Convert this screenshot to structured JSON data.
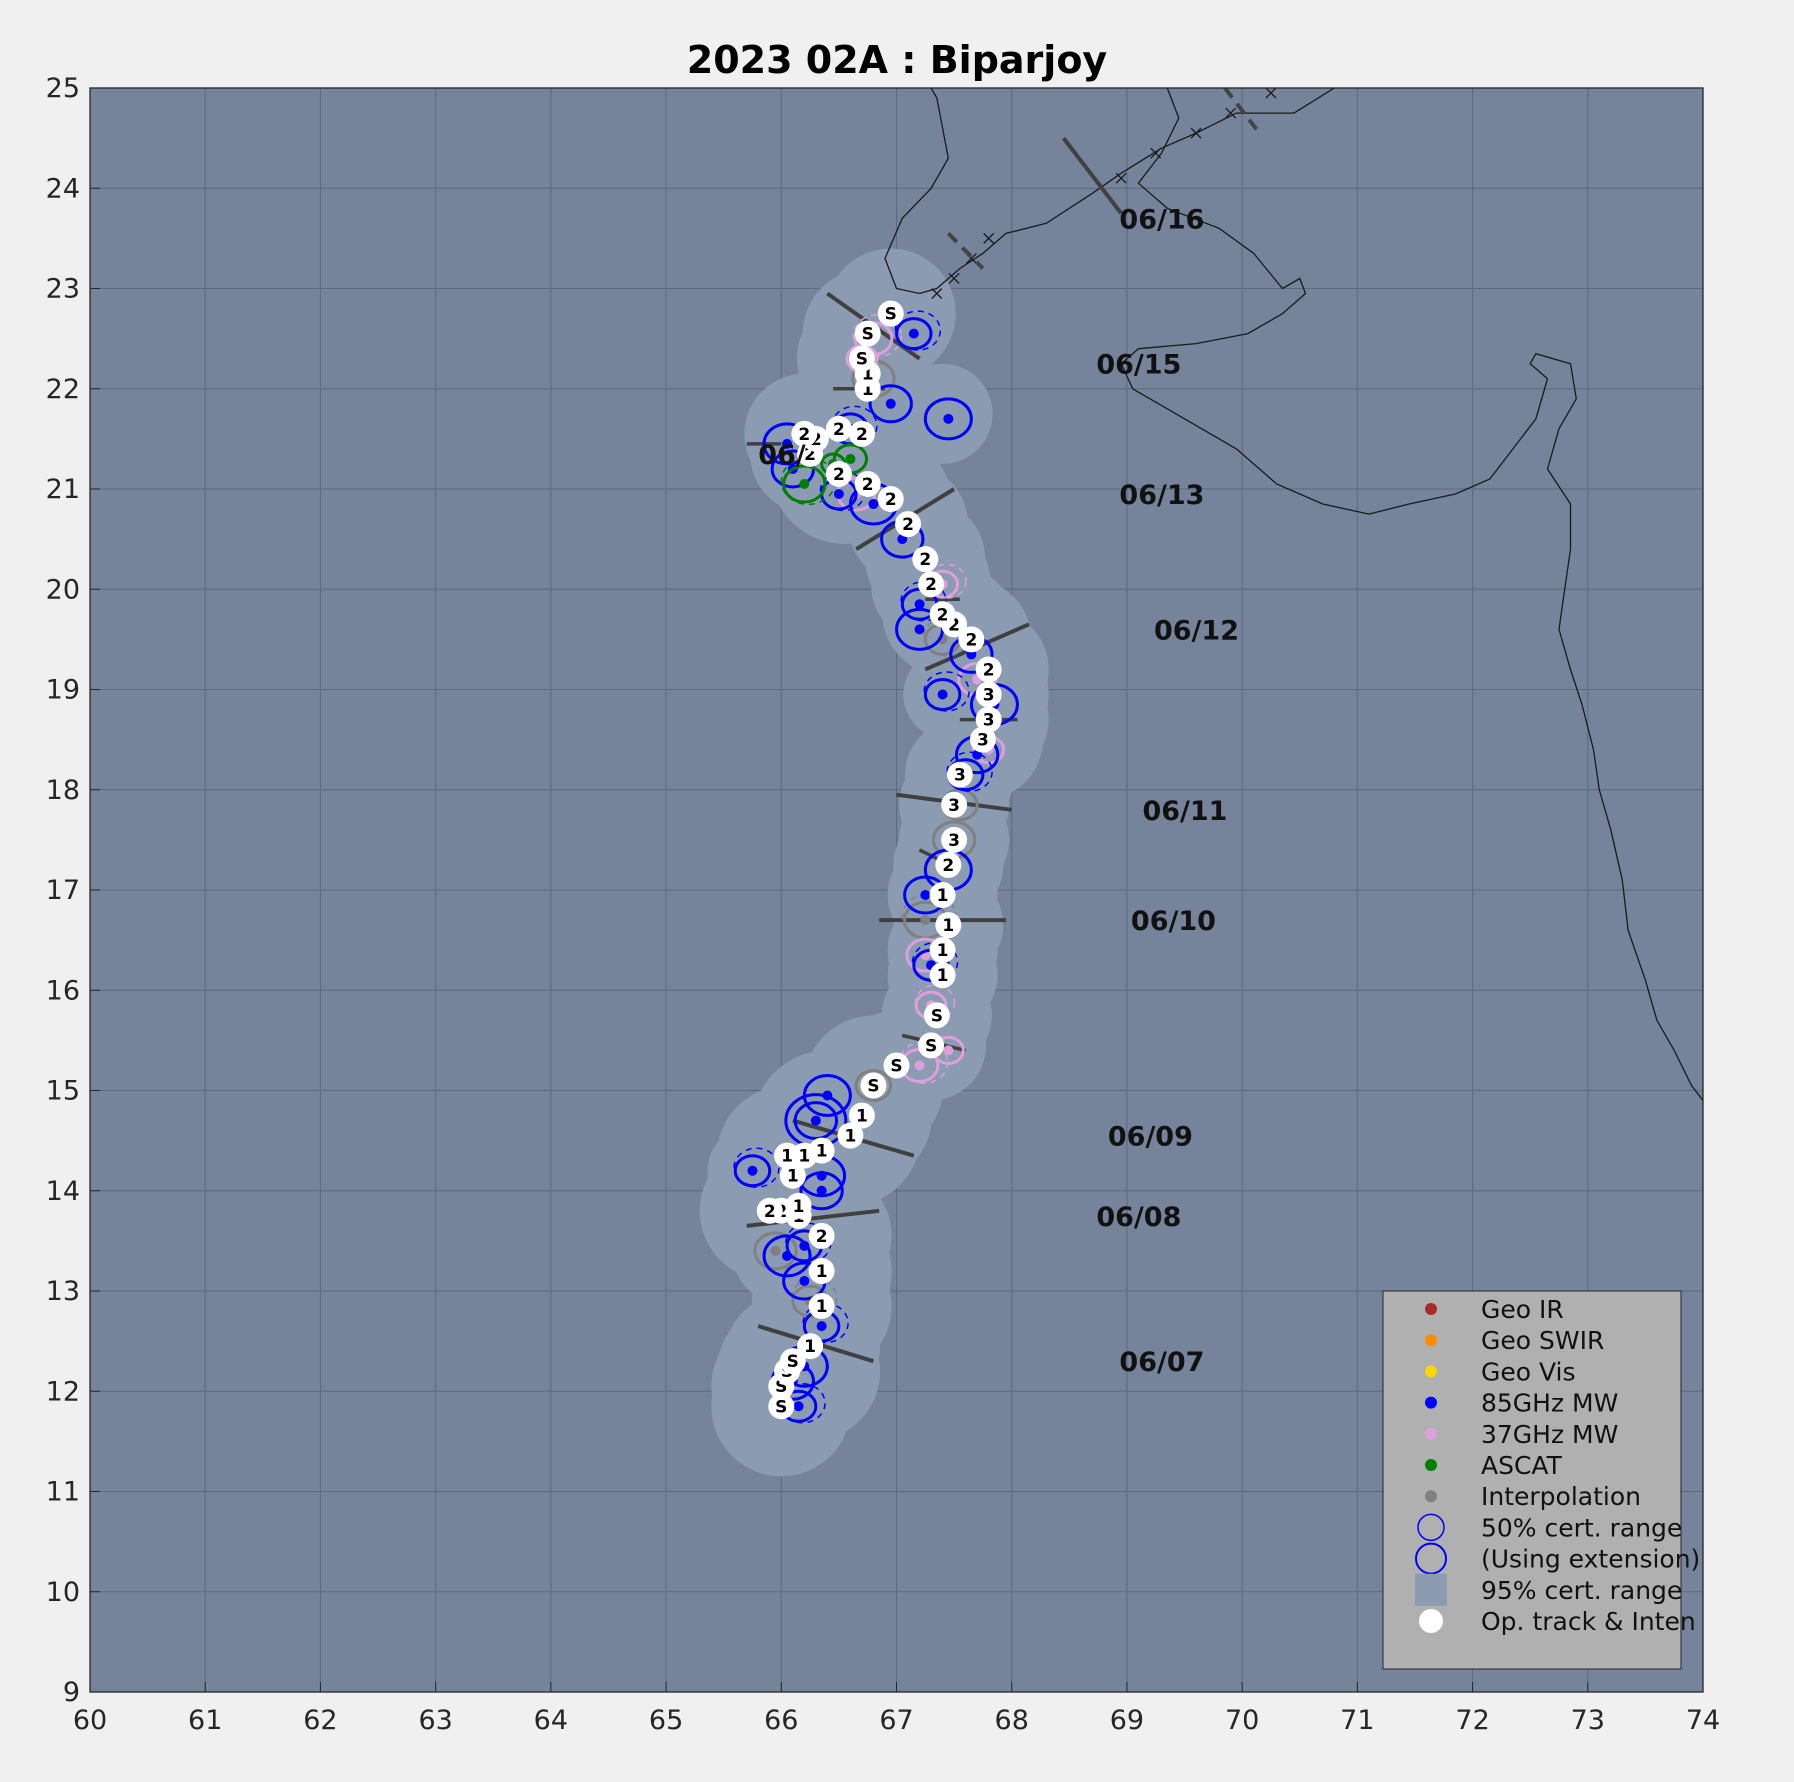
{
  "title": "2023  02A :  Biparjoy",
  "colors": {
    "geo_ir": "#a52a2a",
    "geo_swir": "#ff8c00",
    "geo_vis": "#ffd700",
    "mw85": "#0000ff",
    "mw37": "#dda0dd",
    "ascat": "#008000",
    "interp": "#808080",
    "ocean": "#75849a",
    "cone": "#8b9bb2",
    "land_line": "#1a1a1a"
  },
  "chart_data": {
    "type": "scatter",
    "xlim": [
      60,
      74
    ],
    "ylim": [
      9,
      25
    ],
    "x_ticks": [
      "60",
      "61",
      "62",
      "63",
      "64",
      "65",
      "66",
      "67",
      "68",
      "69",
      "70",
      "71",
      "72",
      "73",
      "74"
    ],
    "y_ticks": [
      "9",
      "10",
      "11",
      "12",
      "13",
      "14",
      "15",
      "16",
      "17",
      "18",
      "19",
      "20",
      "21",
      "22",
      "23",
      "24",
      "25"
    ],
    "grid": true,
    "legend_position": "bottom-right",
    "legend": [
      "Geo IR",
      "Geo SWIR",
      "Geo Vis",
      "85GHz MW",
      "37GHz MW",
      "ASCAT",
      "Interpolation",
      "50% cert. range",
      "(Using extension)",
      "95% cert. range",
      "Op. track & Inten"
    ],
    "date_labels": [
      {
        "text": "06/07",
        "lon": 68.9,
        "lat": 12.3
      },
      {
        "text": "06/08",
        "lon": 68.7,
        "lat": 13.75
      },
      {
        "text": "06/09",
        "lon": 68.8,
        "lat": 14.55
      },
      {
        "text": "06/10",
        "lon": 69.0,
        "lat": 16.7
      },
      {
        "text": "06/11",
        "lon": 69.1,
        "lat": 17.8
      },
      {
        "text": "06/12",
        "lon": 69.2,
        "lat": 19.6
      },
      {
        "text": "06/13",
        "lon": 68.9,
        "lat": 20.95
      },
      {
        "text": "06/15",
        "lon": 68.7,
        "lat": 22.25
      },
      {
        "text": "06/16",
        "lon": 68.9,
        "lat": 23.7
      }
    ],
    "track": [
      {
        "lon": 66.0,
        "lat": 11.85,
        "i": "S"
      },
      {
        "lon": 66.0,
        "lat": 12.05,
        "i": "S"
      },
      {
        "lon": 66.05,
        "lat": 12.2,
        "i": "S"
      },
      {
        "lon": 66.1,
        "lat": 12.3,
        "i": "S"
      },
      {
        "lon": 66.25,
        "lat": 12.45,
        "i": "1"
      },
      {
        "lon": 66.35,
        "lat": 12.85,
        "i": "1"
      },
      {
        "lon": 66.35,
        "lat": 13.2,
        "i": "1"
      },
      {
        "lon": 66.35,
        "lat": 13.55,
        "i": "2"
      },
      {
        "lon": 66.15,
        "lat": 13.75,
        "i": "1"
      },
      {
        "lon": 66.15,
        "lat": 13.85,
        "i": "1"
      },
      {
        "lon": 66.0,
        "lat": 13.8,
        "i": "2"
      },
      {
        "lon": 65.9,
        "lat": 13.8,
        "i": "2"
      },
      {
        "lon": 66.1,
        "lat": 14.15,
        "i": "1"
      },
      {
        "lon": 66.05,
        "lat": 14.35,
        "i": "1"
      },
      {
        "lon": 66.2,
        "lat": 14.35,
        "i": "1"
      },
      {
        "lon": 66.35,
        "lat": 14.4,
        "i": "1"
      },
      {
        "lon": 66.6,
        "lat": 14.55,
        "i": "1"
      },
      {
        "lon": 66.7,
        "lat": 14.75,
        "i": "1"
      },
      {
        "lon": 66.8,
        "lat": 15.05,
        "i": "S"
      },
      {
        "lon": 67.0,
        "lat": 15.25,
        "i": "S"
      },
      {
        "lon": 67.3,
        "lat": 15.45,
        "i": "S"
      },
      {
        "lon": 67.35,
        "lat": 15.75,
        "i": "S"
      },
      {
        "lon": 67.4,
        "lat": 16.15,
        "i": "1"
      },
      {
        "lon": 67.4,
        "lat": 16.4,
        "i": "1"
      },
      {
        "lon": 67.45,
        "lat": 16.65,
        "i": "1"
      },
      {
        "lon": 67.4,
        "lat": 16.95,
        "i": "1"
      },
      {
        "lon": 67.45,
        "lat": 17.25,
        "i": "2"
      },
      {
        "lon": 67.5,
        "lat": 17.5,
        "i": "3"
      },
      {
        "lon": 67.5,
        "lat": 17.85,
        "i": "3"
      },
      {
        "lon": 67.55,
        "lat": 18.15,
        "i": "3"
      },
      {
        "lon": 67.75,
        "lat": 18.5,
        "i": "3"
      },
      {
        "lon": 67.8,
        "lat": 18.7,
        "i": "3"
      },
      {
        "lon": 67.8,
        "lat": 18.95,
        "i": "3"
      },
      {
        "lon": 67.8,
        "lat": 19.2,
        "i": "2"
      },
      {
        "lon": 67.65,
        "lat": 19.5,
        "i": "2"
      },
      {
        "lon": 67.5,
        "lat": 19.65,
        "i": "2"
      },
      {
        "lon": 67.4,
        "lat": 19.75,
        "i": "2"
      },
      {
        "lon": 67.3,
        "lat": 20.05,
        "i": "2"
      },
      {
        "lon": 67.25,
        "lat": 20.3,
        "i": "2"
      },
      {
        "lon": 67.1,
        "lat": 20.65,
        "i": "2"
      },
      {
        "lon": 66.95,
        "lat": 20.9,
        "i": "2"
      },
      {
        "lon": 66.75,
        "lat": 21.05,
        "i": "2"
      },
      {
        "lon": 66.5,
        "lat": 21.15,
        "i": "2"
      },
      {
        "lon": 66.25,
        "lat": 21.35,
        "i": "2"
      },
      {
        "lon": 66.3,
        "lat": 21.5,
        "i": "2"
      },
      {
        "lon": 66.2,
        "lat": 21.55,
        "i": "2"
      },
      {
        "lon": 66.5,
        "lat": 21.6,
        "i": "2"
      },
      {
        "lon": 66.7,
        "lat": 21.55,
        "i": "2"
      },
      {
        "lon": 66.75,
        "lat": 22.0,
        "i": "1"
      },
      {
        "lon": 66.75,
        "lat": 22.15,
        "i": "1"
      },
      {
        "lon": 66.7,
        "lat": 22.3,
        "i": "S"
      },
      {
        "lon": 66.75,
        "lat": 22.55,
        "i": "S"
      },
      {
        "lon": 66.95,
        "lat": 22.75,
        "i": "S"
      }
    ],
    "fixes_85ghz": [
      {
        "lon": 66.15,
        "lat": 11.85
      },
      {
        "lon": 66.1,
        "lat": 12.1
      },
      {
        "lon": 66.2,
        "lat": 12.25
      },
      {
        "lon": 66.35,
        "lat": 12.65
      },
      {
        "lon": 66.2,
        "lat": 13.1
      },
      {
        "lon": 66.05,
        "lat": 13.35
      },
      {
        "lon": 66.2,
        "lat": 13.45
      },
      {
        "lon": 66.35,
        "lat": 14.0
      },
      {
        "lon": 66.35,
        "lat": 14.15
      },
      {
        "lon": 65.75,
        "lat": 14.2
      },
      {
        "lon": 66.3,
        "lat": 14.7
      },
      {
        "lon": 66.4,
        "lat": 14.95
      },
      {
        "lon": 67.3,
        "lat": 16.25
      },
      {
        "lon": 67.25,
        "lat": 16.95
      },
      {
        "lon": 67.45,
        "lat": 17.2
      },
      {
        "lon": 67.6,
        "lat": 18.15
      },
      {
        "lon": 67.7,
        "lat": 18.35
      },
      {
        "lon": 67.85,
        "lat": 18.85
      },
      {
        "lon": 67.4,
        "lat": 18.95
      },
      {
        "lon": 67.65,
        "lat": 19.35
      },
      {
        "lon": 67.2,
        "lat": 19.6
      },
      {
        "lon": 67.2,
        "lat": 19.85
      },
      {
        "lon": 67.05,
        "lat": 20.5
      },
      {
        "lon": 66.8,
        "lat": 20.85
      },
      {
        "lon": 66.5,
        "lat": 20.95
      },
      {
        "lon": 66.1,
        "lat": 21.2
      },
      {
        "lon": 66.05,
        "lat": 21.45
      },
      {
        "lon": 66.6,
        "lat": 21.6
      },
      {
        "lon": 66.95,
        "lat": 21.85
      },
      {
        "lon": 67.45,
        "lat": 21.7
      },
      {
        "lon": 67.15,
        "lat": 22.55
      }
    ],
    "fixes_37ghz": [
      {
        "lon": 67.3,
        "lat": 15.85
      },
      {
        "lon": 67.25,
        "lat": 16.35
      },
      {
        "lon": 67.45,
        "lat": 15.4
      },
      {
        "lon": 67.2,
        "lat": 15.25
      },
      {
        "lon": 67.8,
        "lat": 18.4
      },
      {
        "lon": 67.7,
        "lat": 19.1
      },
      {
        "lon": 67.4,
        "lat": 20.05
      },
      {
        "lon": 66.65,
        "lat": 20.95
      },
      {
        "lon": 66.7,
        "lat": 22.3
      },
      {
        "lon": 66.8,
        "lat": 22.5
      }
    ],
    "fixes_ascat": [
      {
        "lon": 66.2,
        "lat": 21.05
      },
      {
        "lon": 66.6,
        "lat": 21.3
      },
      {
        "lon": 66.45,
        "lat": 21.25
      }
    ],
    "fixes_interp": [
      {
        "lon": 66.25,
        "lat": 12.9
      },
      {
        "lon": 65.95,
        "lat": 13.4
      },
      {
        "lon": 66.8,
        "lat": 15.05
      },
      {
        "lon": 67.25,
        "lat": 16.7
      },
      {
        "lon": 67.55,
        "lat": 17.85
      },
      {
        "lon": 67.5,
        "lat": 17.5
      },
      {
        "lon": 67.4,
        "lat": 19.5
      },
      {
        "lon": 66.8,
        "lat": 22.1
      }
    ]
  }
}
